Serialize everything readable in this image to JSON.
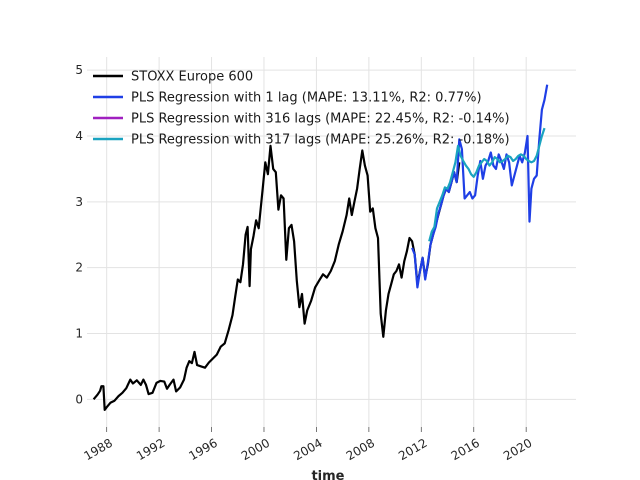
{
  "chart_data": {
    "type": "line",
    "title": "",
    "xlabel": "time",
    "ylabel": "",
    "xlim": [
      1986.5,
      2023.8
    ],
    "ylim": [
      -0.42,
      5.2
    ],
    "grid": true,
    "legend_position": "top-left",
    "x_ticks": [
      1988,
      1992,
      1996,
      2000,
      2004,
      2008,
      2012,
      2016,
      2020
    ],
    "x_tick_labels": [
      "1988",
      "1992",
      "1996",
      "2000",
      "2004",
      "2008",
      "2012",
      "2016",
      "2020"
    ],
    "y_ticks": [
      0,
      1,
      2,
      3,
      4,
      5
    ],
    "y_tick_labels": [
      "0",
      "1",
      "2",
      "3",
      "4",
      "5"
    ],
    "series": [
      {
        "name": "STOXX Europe 600",
        "color": "#000000",
        "points": [
          [
            1987.0,
            0.0
          ],
          [
            1987.3,
            0.07
          ],
          [
            1987.5,
            0.13
          ],
          [
            1987.6,
            0.2
          ],
          [
            1987.75,
            0.2
          ],
          [
            1987.85,
            -0.16
          ],
          [
            1988.0,
            -0.12
          ],
          [
            1988.3,
            -0.05
          ],
          [
            1988.6,
            -0.02
          ],
          [
            1988.9,
            0.05
          ],
          [
            1989.2,
            0.1
          ],
          [
            1989.5,
            0.17
          ],
          [
            1989.8,
            0.3
          ],
          [
            1990.0,
            0.24
          ],
          [
            1990.3,
            0.29
          ],
          [
            1990.6,
            0.22
          ],
          [
            1990.8,
            0.3
          ],
          [
            1991.0,
            0.22
          ],
          [
            1991.2,
            0.08
          ],
          [
            1991.5,
            0.1
          ],
          [
            1991.8,
            0.25
          ],
          [
            1992.1,
            0.28
          ],
          [
            1992.4,
            0.27
          ],
          [
            1992.6,
            0.16
          ],
          [
            1992.8,
            0.22
          ],
          [
            1993.1,
            0.3
          ],
          [
            1993.3,
            0.12
          ],
          [
            1993.6,
            0.18
          ],
          [
            1993.9,
            0.3
          ],
          [
            1994.1,
            0.48
          ],
          [
            1994.3,
            0.58
          ],
          [
            1994.5,
            0.55
          ],
          [
            1994.7,
            0.72
          ],
          [
            1994.9,
            0.52
          ],
          [
            1995.2,
            0.5
          ],
          [
            1995.5,
            0.48
          ],
          [
            1995.8,
            0.56
          ],
          [
            1996.1,
            0.62
          ],
          [
            1996.4,
            0.68
          ],
          [
            1996.7,
            0.8
          ],
          [
            1997.0,
            0.85
          ],
          [
            1997.3,
            1.05
          ],
          [
            1997.6,
            1.28
          ],
          [
            1997.8,
            1.55
          ],
          [
            1998.0,
            1.82
          ],
          [
            1998.2,
            1.78
          ],
          [
            1998.4,
            2.05
          ],
          [
            1998.6,
            2.5
          ],
          [
            1998.75,
            2.62
          ],
          [
            1998.9,
            1.72
          ],
          [
            1999.0,
            2.28
          ],
          [
            1999.2,
            2.48
          ],
          [
            1999.4,
            2.72
          ],
          [
            1999.6,
            2.6
          ],
          [
            1999.9,
            3.2
          ],
          [
            2000.1,
            3.6
          ],
          [
            2000.3,
            3.42
          ],
          [
            2000.5,
            3.85
          ],
          [
            2000.7,
            3.5
          ],
          [
            2000.9,
            3.45
          ],
          [
            2001.1,
            2.88
          ],
          [
            2001.3,
            3.1
          ],
          [
            2001.5,
            3.05
          ],
          [
            2001.7,
            2.12
          ],
          [
            2001.9,
            2.6
          ],
          [
            2002.1,
            2.65
          ],
          [
            2002.3,
            2.4
          ],
          [
            2002.5,
            1.8
          ],
          [
            2002.7,
            1.4
          ],
          [
            2002.9,
            1.6
          ],
          [
            2003.1,
            1.15
          ],
          [
            2003.3,
            1.35
          ],
          [
            2003.6,
            1.5
          ],
          [
            2003.9,
            1.7
          ],
          [
            2004.2,
            1.8
          ],
          [
            2004.5,
            1.9
          ],
          [
            2004.8,
            1.85
          ],
          [
            2005.1,
            1.95
          ],
          [
            2005.4,
            2.1
          ],
          [
            2005.7,
            2.35
          ],
          [
            2006.0,
            2.55
          ],
          [
            2006.3,
            2.8
          ],
          [
            2006.5,
            3.05
          ],
          [
            2006.7,
            2.8
          ],
          [
            2006.9,
            3.0
          ],
          [
            2007.1,
            3.2
          ],
          [
            2007.3,
            3.5
          ],
          [
            2007.5,
            3.78
          ],
          [
            2007.7,
            3.55
          ],
          [
            2007.9,
            3.4
          ],
          [
            2008.1,
            2.85
          ],
          [
            2008.3,
            2.9
          ],
          [
            2008.5,
            2.6
          ],
          [
            2008.7,
            2.45
          ],
          [
            2008.9,
            1.3
          ],
          [
            2009.1,
            0.95
          ],
          [
            2009.3,
            1.35
          ],
          [
            2009.5,
            1.6
          ],
          [
            2009.7,
            1.75
          ],
          [
            2009.9,
            1.9
          ],
          [
            2010.1,
            1.95
          ],
          [
            2010.3,
            2.05
          ],
          [
            2010.5,
            1.85
          ],
          [
            2010.7,
            2.1
          ],
          [
            2010.9,
            2.25
          ],
          [
            2011.1,
            2.45
          ],
          [
            2011.3,
            2.4
          ],
          [
            2011.5,
            2.2
          ],
          [
            2011.7,
            1.75
          ],
          [
            2011.9,
            1.95
          ],
          [
            2012.1,
            2.15
          ],
          [
            2012.3,
            1.85
          ],
          [
            2012.5,
            2.05
          ],
          [
            2012.7,
            2.35
          ],
          [
            2012.9,
            2.5
          ],
          [
            2013.1,
            2.65
          ],
          [
            2013.3,
            2.8
          ],
          [
            2013.5,
            2.95
          ],
          [
            2013.7,
            3.1
          ],
          [
            2013.9,
            3.2
          ],
          [
            2014.1,
            3.15
          ],
          [
            2014.3,
            3.3
          ],
          [
            2014.5,
            3.45
          ],
          [
            2014.7,
            3.3
          ],
          [
            2014.9,
            3.6
          ]
        ]
      },
      {
        "name": "PLS Regression with 1 lag (MAPE: 13.11%, R2: 0.77%)",
        "color": "#1f3fe6",
        "points": [
          [
            2011.3,
            2.3
          ],
          [
            2011.5,
            2.2
          ],
          [
            2011.7,
            1.7
          ],
          [
            2011.9,
            1.95
          ],
          [
            2012.1,
            2.15
          ],
          [
            2012.3,
            1.82
          ],
          [
            2012.5,
            2.08
          ],
          [
            2012.7,
            2.35
          ],
          [
            2012.9,
            2.5
          ],
          [
            2013.1,
            2.62
          ],
          [
            2013.3,
            2.82
          ],
          [
            2013.5,
            2.95
          ],
          [
            2013.7,
            3.1
          ],
          [
            2013.9,
            3.2
          ],
          [
            2014.1,
            3.15
          ],
          [
            2014.3,
            3.3
          ],
          [
            2014.5,
            3.45
          ],
          [
            2014.7,
            3.3
          ],
          [
            2014.9,
            3.95
          ],
          [
            2015.1,
            3.8
          ],
          [
            2015.3,
            3.05
          ],
          [
            2015.5,
            3.1
          ],
          [
            2015.7,
            3.15
          ],
          [
            2015.9,
            3.05
          ],
          [
            2016.1,
            3.1
          ],
          [
            2016.3,
            3.4
          ],
          [
            2016.5,
            3.62
          ],
          [
            2016.7,
            3.35
          ],
          [
            2016.9,
            3.55
          ],
          [
            2017.1,
            3.62
          ],
          [
            2017.3,
            3.75
          ],
          [
            2017.5,
            3.55
          ],
          [
            2017.7,
            3.5
          ],
          [
            2017.9,
            3.72
          ],
          [
            2018.1,
            3.62
          ],
          [
            2018.3,
            3.5
          ],
          [
            2018.5,
            3.72
          ],
          [
            2018.7,
            3.6
          ],
          [
            2018.9,
            3.25
          ],
          [
            2019.1,
            3.4
          ],
          [
            2019.3,
            3.55
          ],
          [
            2019.5,
            3.7
          ],
          [
            2019.7,
            3.6
          ],
          [
            2019.9,
            3.75
          ],
          [
            2020.1,
            4.0
          ],
          [
            2020.25,
            2.7
          ],
          [
            2020.4,
            3.2
          ],
          [
            2020.6,
            3.35
          ],
          [
            2020.8,
            3.4
          ],
          [
            2021.0,
            3.95
          ],
          [
            2021.2,
            4.4
          ],
          [
            2021.4,
            4.55
          ],
          [
            2021.6,
            4.78
          ]
        ]
      },
      {
        "name": "PLS Regression with 316 lags (MAPE: 22.45%, R2: -0.14%)",
        "color": "#a020c0",
        "points": []
      },
      {
        "name": "PLS Regression with 317 lags (MAPE: 25.26%, R2: -0.18%)",
        "color": "#1aa3c0",
        "points": [
          [
            2012.6,
            2.4
          ],
          [
            2012.8,
            2.55
          ],
          [
            2013.0,
            2.62
          ],
          [
            2013.2,
            2.9
          ],
          [
            2013.4,
            3.0
          ],
          [
            2013.6,
            3.1
          ],
          [
            2013.8,
            3.22
          ],
          [
            2014.0,
            3.2
          ],
          [
            2014.2,
            3.3
          ],
          [
            2014.4,
            3.45
          ],
          [
            2014.6,
            3.6
          ],
          [
            2014.8,
            3.85
          ],
          [
            2015.0,
            3.7
          ],
          [
            2015.2,
            3.62
          ],
          [
            2015.4,
            3.55
          ],
          [
            2015.6,
            3.5
          ],
          [
            2015.8,
            3.42
          ],
          [
            2016.0,
            3.38
          ],
          [
            2016.2,
            3.45
          ],
          [
            2016.4,
            3.55
          ],
          [
            2016.6,
            3.6
          ],
          [
            2016.8,
            3.65
          ],
          [
            2017.0,
            3.62
          ],
          [
            2017.2,
            3.55
          ],
          [
            2017.4,
            3.6
          ],
          [
            2017.6,
            3.68
          ],
          [
            2017.8,
            3.65
          ],
          [
            2018.0,
            3.6
          ],
          [
            2018.2,
            3.62
          ],
          [
            2018.4,
            3.65
          ],
          [
            2018.6,
            3.7
          ],
          [
            2018.8,
            3.68
          ],
          [
            2019.0,
            3.62
          ],
          [
            2019.2,
            3.65
          ],
          [
            2019.4,
            3.7
          ],
          [
            2019.6,
            3.72
          ],
          [
            2019.8,
            3.7
          ],
          [
            2020.0,
            3.65
          ],
          [
            2020.2,
            3.62
          ],
          [
            2020.4,
            3.6
          ],
          [
            2020.6,
            3.62
          ],
          [
            2020.8,
            3.7
          ],
          [
            2021.0,
            3.85
          ],
          [
            2021.2,
            4.0
          ],
          [
            2021.4,
            4.12
          ]
        ]
      }
    ]
  }
}
